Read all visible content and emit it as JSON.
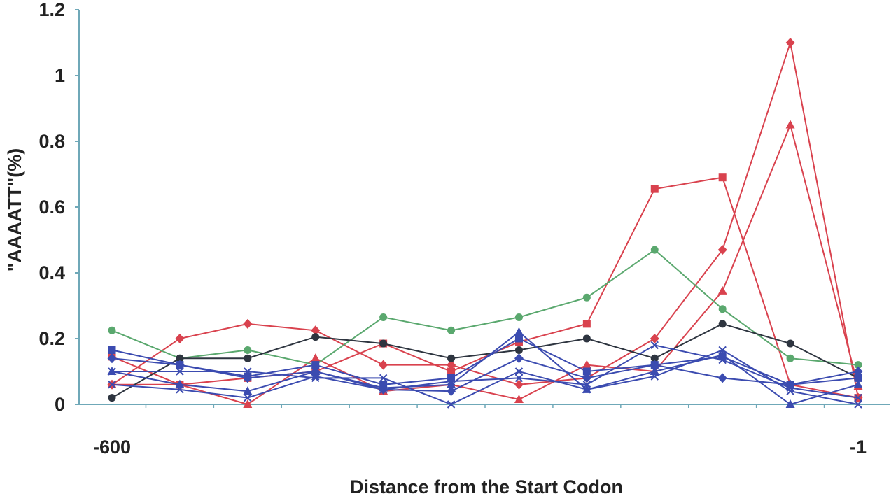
{
  "chart_data": {
    "type": "line",
    "xlabel": "Distance from the Start Codon",
    "ylabel": "\"AAAATT\"(%)",
    "x_tick_labels": [
      "-600",
      "-1"
    ],
    "y_ticks": [
      0,
      0.2,
      0.4,
      0.6,
      0.8,
      1,
      1.2
    ],
    "y_tick_labels": [
      "0",
      "0.2",
      "0.4",
      "0.6",
      "0.8",
      "1",
      "1.2"
    ],
    "ylim": [
      0,
      1.2
    ],
    "x": [
      1,
      2,
      3,
      4,
      5,
      6,
      7,
      8,
      9,
      10,
      11,
      12
    ],
    "grid": false,
    "legend": "none",
    "series": [
      {
        "color": "#d9424e",
        "marker": "diamond",
        "values": [
          0.06,
          0.2,
          0.245,
          0.225,
          0.12,
          0.12,
          0.06,
          0.08,
          0.2,
          0.47,
          1.1,
          0.02
        ]
      },
      {
        "color": "#d9424e",
        "marker": "square",
        "values": [
          0.145,
          0.06,
          0.08,
          0.1,
          0.185,
          0.1,
          0.19,
          0.245,
          0.655,
          0.69,
          0.06,
          0.02
        ]
      },
      {
        "color": "#d9424e",
        "marker": "triangle",
        "values": [
          0.06,
          0.06,
          0.0,
          0.14,
          0.04,
          0.06,
          0.015,
          0.12,
          0.1,
          0.345,
          0.85,
          0.055
        ]
      },
      {
        "color": "#5aa86e",
        "marker": "circle",
        "values": [
          0.225,
          0.14,
          0.165,
          0.12,
          0.265,
          0.225,
          0.265,
          0.325,
          0.47,
          0.29,
          0.14,
          0.12
        ]
      },
      {
        "color": "#2e3540",
        "marker": "circle",
        "values": [
          0.02,
          0.14,
          0.14,
          0.205,
          0.185,
          0.14,
          0.165,
          0.2,
          0.14,
          0.245,
          0.185,
          0.08
        ]
      },
      {
        "color": "#3b4bb0",
        "marker": "square",
        "values": [
          0.165,
          0.12,
          0.085,
          0.12,
          0.06,
          0.08,
          0.2,
          0.1,
          0.12,
          0.145,
          0.06,
          0.08
        ]
      },
      {
        "color": "#3b4bb0",
        "marker": "diamond",
        "values": [
          0.14,
          0.12,
          0.08,
          0.1,
          0.045,
          0.04,
          0.14,
          0.08,
          0.12,
          0.08,
          0.06,
          0.1
        ]
      },
      {
        "color": "#3b4bb0",
        "marker": "triangle",
        "values": [
          0.1,
          0.06,
          0.04,
          0.1,
          0.05,
          0.06,
          0.22,
          0.045,
          0.1,
          0.15,
          0.0,
          0.06
        ]
      },
      {
        "color": "#3b4bb0",
        "marker": "x",
        "values": [
          0.1,
          0.1,
          0.1,
          0.08,
          0.08,
          0.0,
          0.1,
          0.045,
          0.085,
          0.165,
          0.04,
          0.0
        ]
      },
      {
        "color": "#3b4bb0",
        "marker": "x",
        "values": [
          0.06,
          0.045,
          0.02,
          0.085,
          0.045,
          0.07,
          0.08,
          0.06,
          0.18,
          0.135,
          0.05,
          0.02
        ]
      }
    ]
  }
}
